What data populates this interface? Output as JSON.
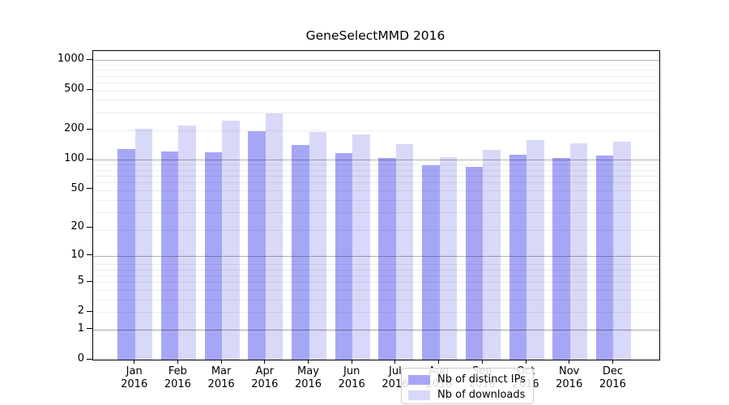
{
  "chart_data": {
    "type": "bar",
    "title": "GeneSelectMMD 2016",
    "xlabel": "",
    "ylabel": "",
    "yscale": "log(1+x)",
    "ylim": [
      0,
      1237
    ],
    "yticks": [
      0,
      1,
      2,
      5,
      10,
      20,
      50,
      100,
      200,
      500,
      1000
    ],
    "grid": "on",
    "grid_major": [
      1,
      10,
      100,
      1000
    ],
    "legend_position": "lower center-right inside plot",
    "year": "2016",
    "months": [
      "Jan",
      "Feb",
      "Mar",
      "Apr",
      "May",
      "Jun",
      "Jul",
      "Aug",
      "Sep",
      "Oct",
      "Nov",
      "Dec"
    ],
    "categories": [
      "Jan 2016",
      "Feb 2016",
      "Mar 2016",
      "Apr 2016",
      "May 2016",
      "Jun 2016",
      "Jul 2016",
      "Aug 2016",
      "Sep 2016",
      "Oct 2016",
      "Nov 2016",
      "Dec 2016"
    ],
    "series": [
      {
        "name": "Nb of distinct IPs",
        "color": "#a6a6f6",
        "values": [
          127,
          122,
          119,
          194,
          141,
          116,
          105,
          88,
          84,
          113,
          105,
          110
        ]
      },
      {
        "name": "Nb of downloads",
        "color": "#d8d8f8",
        "values": [
          205,
          219,
          248,
          292,
          190,
          180,
          143,
          107,
          125,
          158,
          147,
          152
        ]
      }
    ],
    "colors": {
      "major_grid": "rgba(0,0,0,0.30)",
      "minor_grid": "rgba(0,0,0,0.075)",
      "axis": "#000000",
      "background": "#ffffff"
    }
  }
}
